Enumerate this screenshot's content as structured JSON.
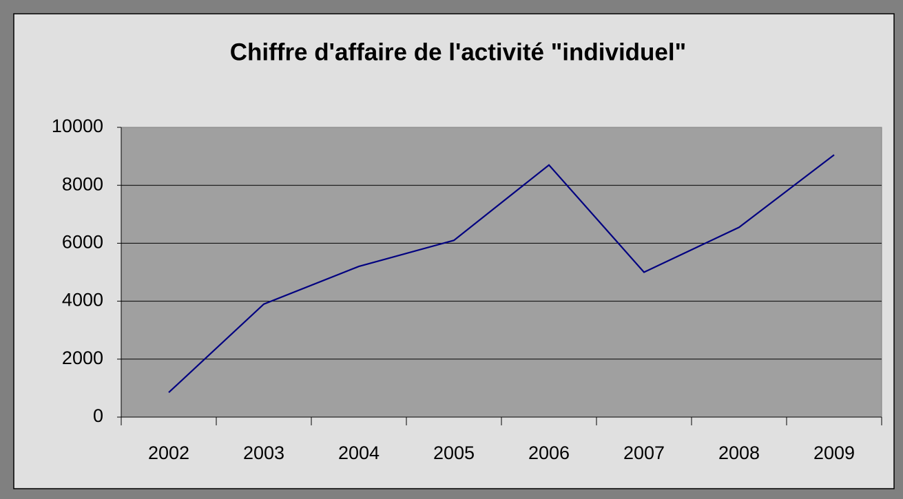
{
  "chart_data": {
    "type": "line",
    "title": "Chiffre d'affaire de l'activité \"individuel\"",
    "categories": [
      "2002",
      "2003",
      "2004",
      "2005",
      "2006",
      "2007",
      "2008",
      "2009"
    ],
    "values": [
      850,
      3900,
      5200,
      6100,
      8700,
      5000,
      6550,
      9050
    ],
    "color": "#000080",
    "ylim": [
      0,
      10000
    ],
    "yticks": [
      0,
      2000,
      4000,
      6000,
      8000,
      10000
    ],
    "grid": true
  }
}
